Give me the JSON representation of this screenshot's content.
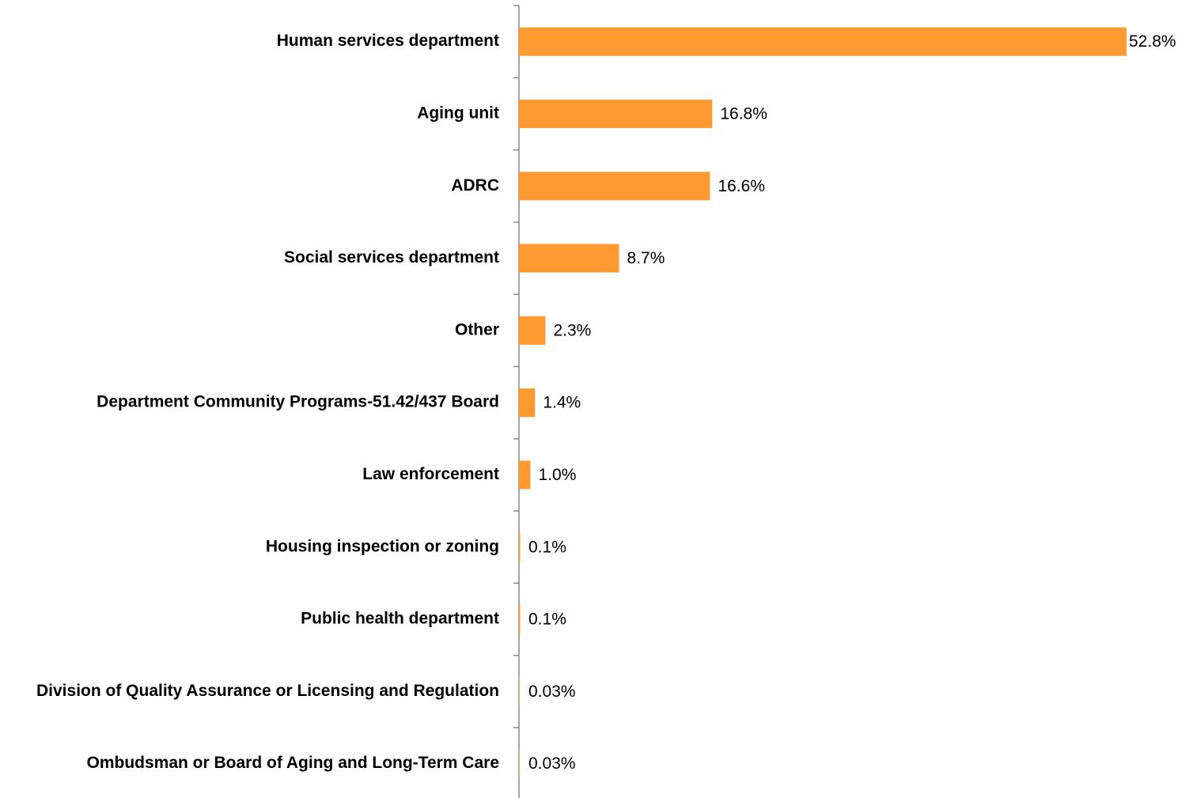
{
  "chart_data": {
    "type": "hbar",
    "categories": [
      "Human services department",
      "Aging unit",
      "ADRC",
      "Social services department",
      "Other",
      "Department Community Programs-51.42/437 Board",
      "Law enforcement",
      "Housing inspection or zoning",
      "Public health department",
      "Division of Quality Assurance or Licensing and Regulation",
      "Ombudsman or Board of Aging and Long-Term Care"
    ],
    "values": [
      52.8,
      16.8,
      16.6,
      8.7,
      2.3,
      1.4,
      1.0,
      0.1,
      0.1,
      0.03,
      0.03
    ],
    "value_labels": [
      "52.8%",
      "16.8%",
      "16.6%",
      "8.7%",
      "2.3%",
      "1.4%",
      "1.0%",
      "0.1%",
      "0.1%",
      "0.03%",
      "0.03%"
    ],
    "color": "#ff9a33"
  }
}
